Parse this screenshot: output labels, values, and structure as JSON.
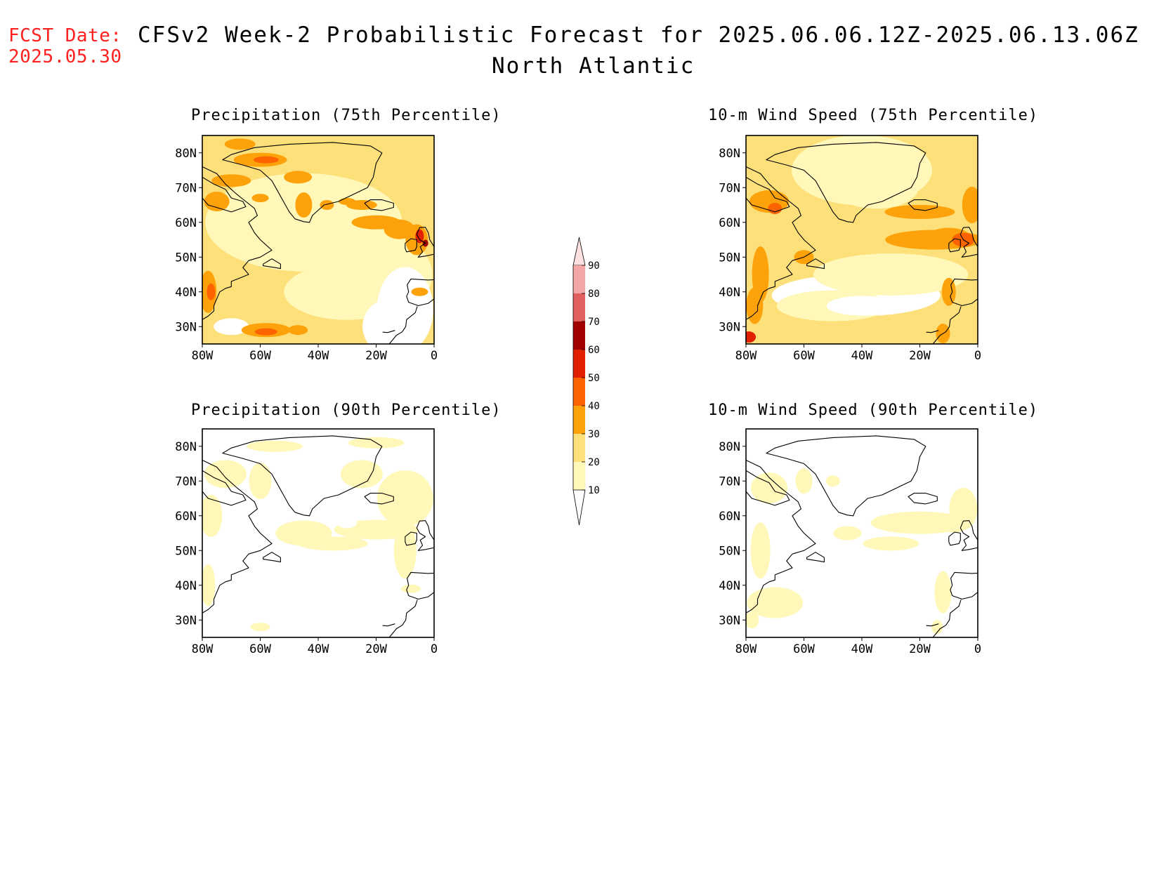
{
  "fcst": {
    "label": "FCST Date:",
    "date": "2025.05.30"
  },
  "title": "CFSv2 Week-2 Probabilistic Forecast for 2025.06.06.12Z-2025.06.13.06Z",
  "subtitle": "North Atlantic",
  "colorbar": {
    "levels": [
      "10",
      "20",
      "30",
      "40",
      "50",
      "60",
      "70",
      "80",
      "90"
    ],
    "colors": [
      "#ffffff",
      "#fff8b8",
      "#fde07a",
      "#fda20a",
      "#fd6400",
      "#e02000",
      "#a00000",
      "#e06060",
      "#f4a6a6",
      "#ffe0e0"
    ]
  },
  "axes": {
    "lat_ticks": [
      "80N",
      "70N",
      "60N",
      "50N",
      "40N",
      "30N"
    ],
    "lon_ticks": [
      "80W",
      "60W",
      "40W",
      "20W",
      "0"
    ],
    "lat_range": [
      25,
      85
    ],
    "lon_range": [
      -80,
      0
    ]
  },
  "panels": [
    {
      "id": "precip-75",
      "title": "Precipitation (75th Percentile)"
    },
    {
      "id": "wind-75",
      "title": "10-m Wind Speed (75th Percentile)"
    },
    {
      "id": "precip-90",
      "title": "Precipitation (90th Percentile)"
    },
    {
      "id": "wind-90",
      "title": "10-m Wind Speed (90th Percentile)"
    }
  ]
}
